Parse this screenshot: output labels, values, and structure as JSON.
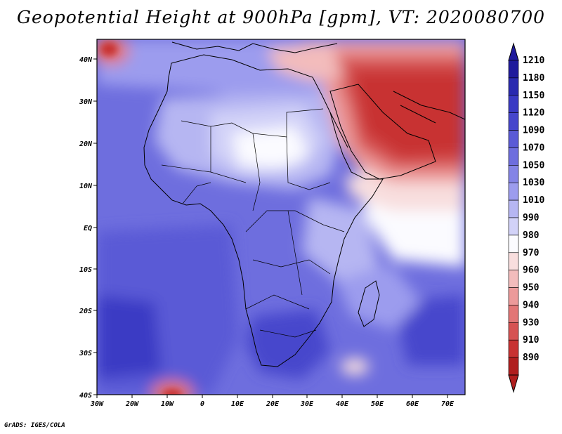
{
  "title": "Geopotential Height at 900hPa [gpm], VT: 2020080700",
  "credit": "GrADS: IGES/COLA",
  "lat_labels": [
    "40N",
    "30N",
    "20N",
    "10N",
    "EQ",
    "10S",
    "20S",
    "30S",
    "40S"
  ],
  "lon_labels": [
    "30W",
    "20W",
    "10W",
    "0",
    "10E",
    "20E",
    "30E",
    "40E",
    "50E",
    "60E",
    "70E"
  ],
  "colorbar": {
    "labels": [
      "1210",
      "1180",
      "1150",
      "1120",
      "1090",
      "1070",
      "1050",
      "1030",
      "1010",
      "990",
      "980",
      "970",
      "960",
      "950",
      "940",
      "930",
      "910",
      "890"
    ],
    "colors": [
      "#1f1a9c",
      "#2a2ab0",
      "#3a3ac4",
      "#4646cc",
      "#5a5ad6",
      "#6e6ede",
      "#8484e6",
      "#9c9cee",
      "#b6b6f2",
      "#d2d2f8",
      "#fbfbff",
      "#f8dede",
      "#f3bcbc",
      "#ec9a9a",
      "#e27676",
      "#d65252",
      "#c83232",
      "#b01e1e"
    ]
  },
  "map_data": {
    "lon_range": [
      -30,
      75
    ],
    "lat_range": [
      -40,
      45
    ],
    "variable": "Geopotential Height",
    "level": "900hPa",
    "units": "gpm",
    "valid_time": "2020080700"
  }
}
